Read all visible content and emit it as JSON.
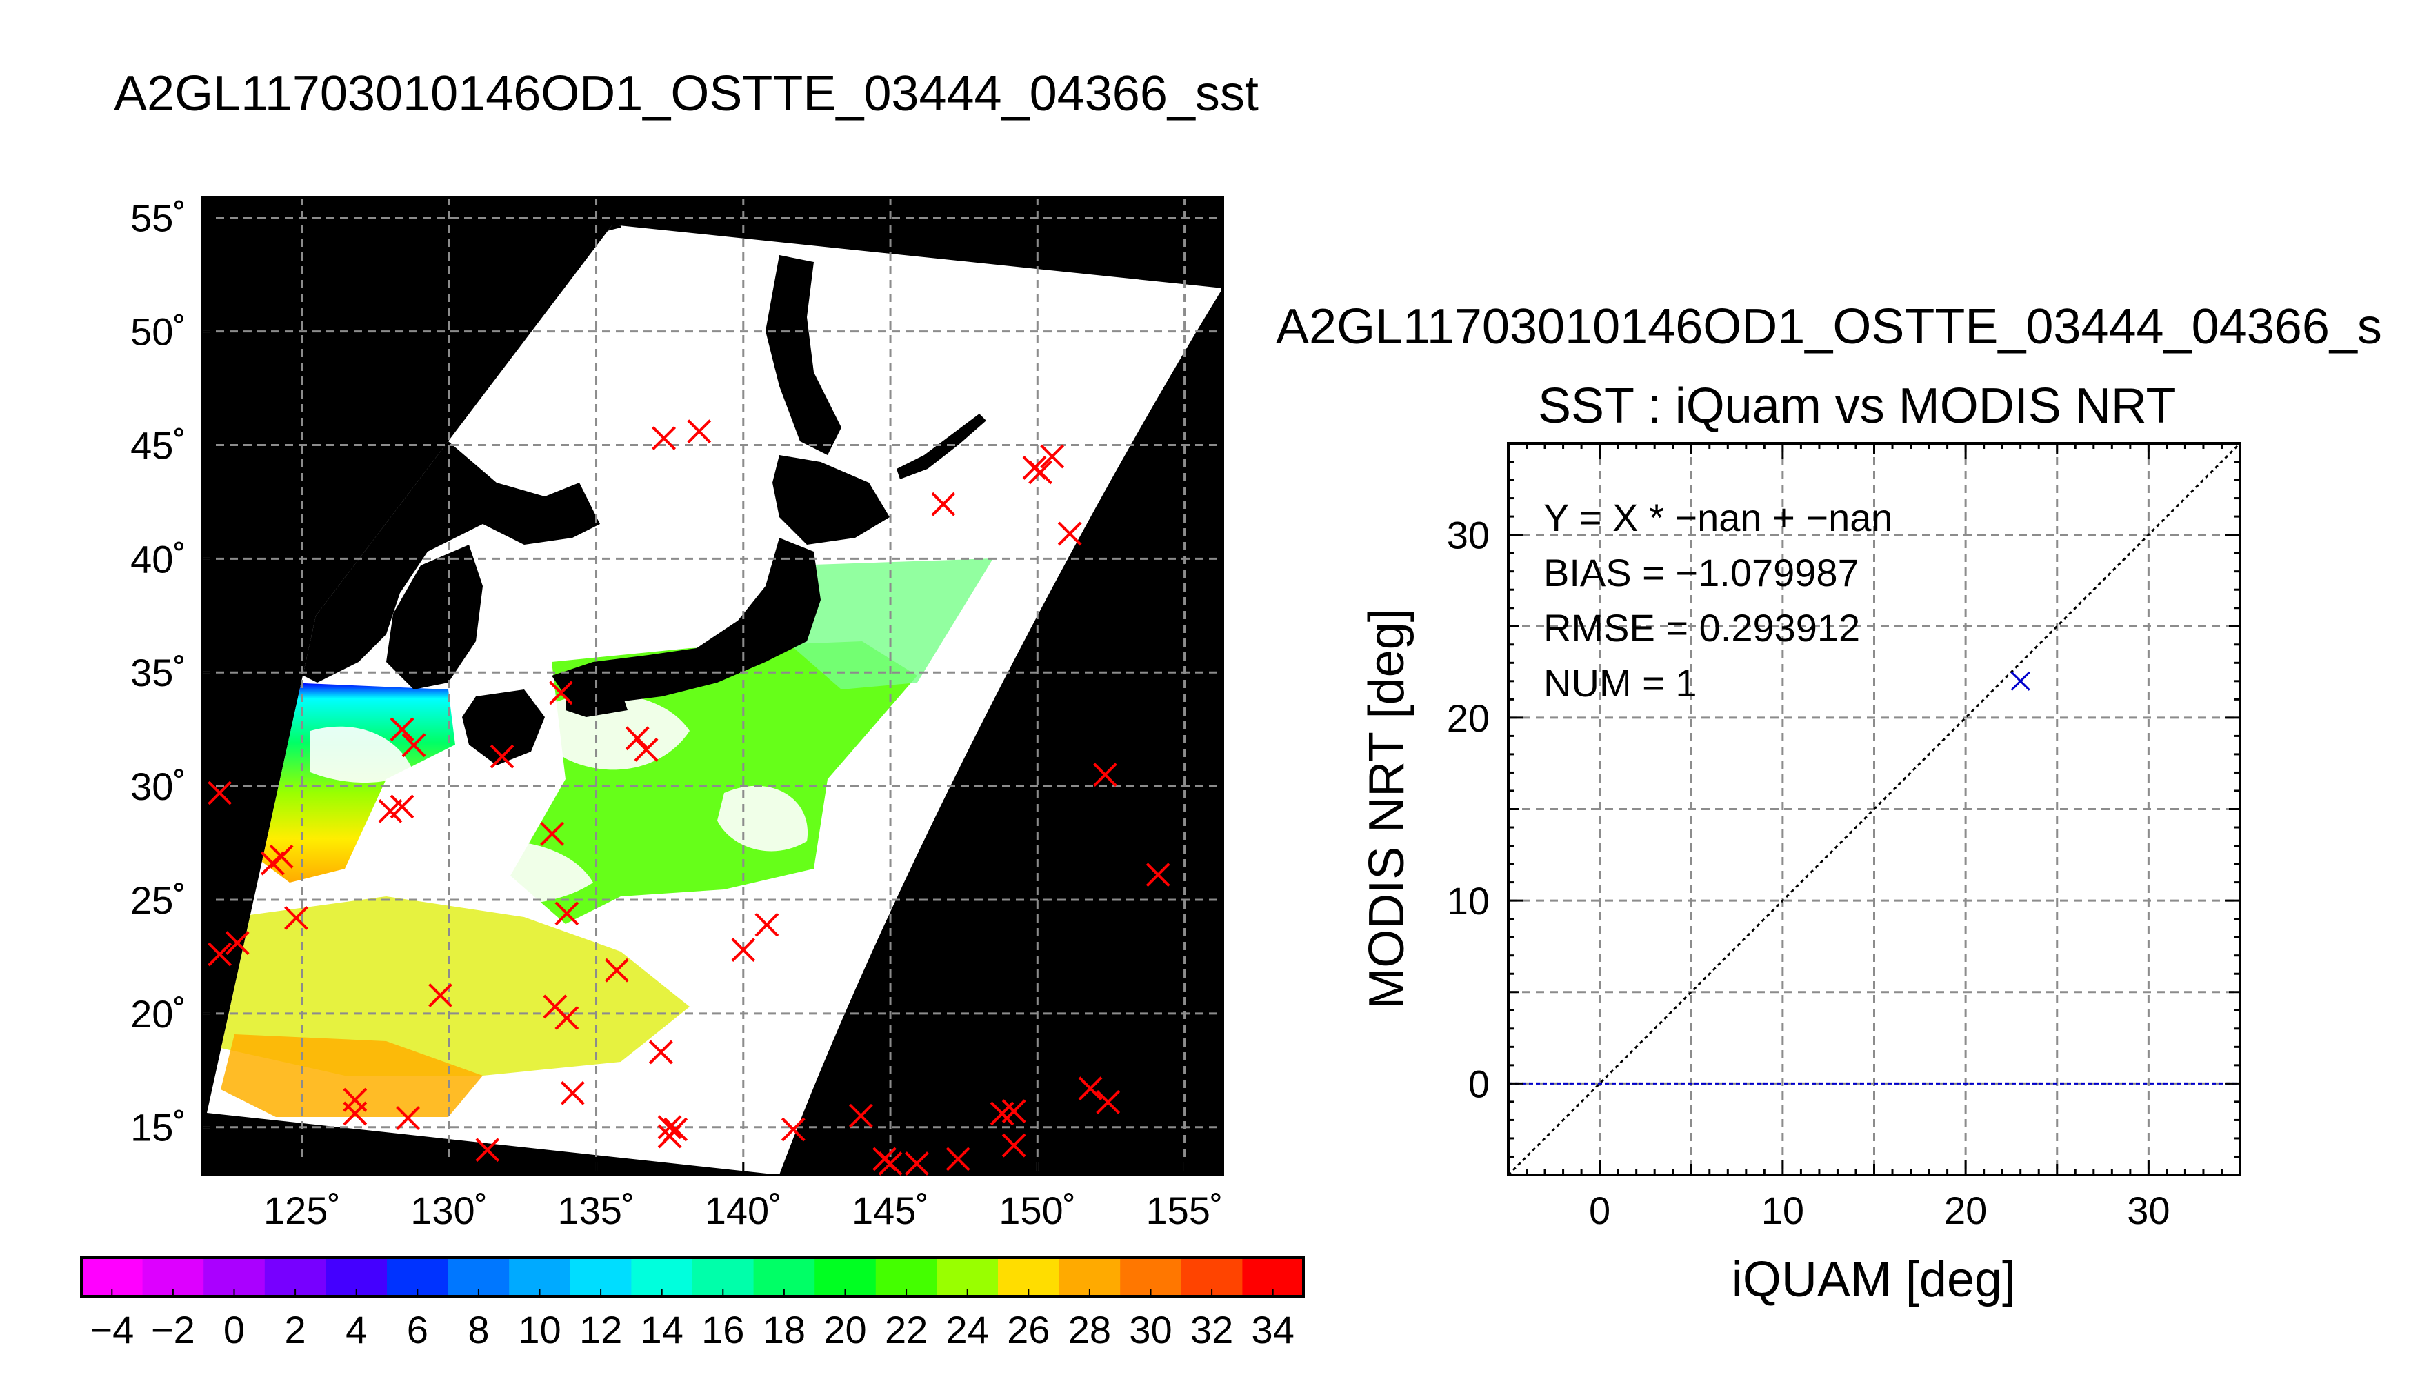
{
  "main_title": "A2GL11703010146OD1_OSTTE_03444_04366_sst",
  "scatter_title": "A2GL11703010146OD1_OSTTE_03444_04366_s",
  "scatter_subtitle": "SST : iQuam vs MODIS NRT",
  "colors": {
    "land": "#000000",
    "cloud": "#ffffff",
    "grid": "#8c8c8c",
    "match_marker": "#ff0000",
    "scatter_marker": "#0000cc",
    "zero_line": "#0000cc",
    "one_to_one_line": "#000000"
  },
  "chart_data": [
    {
      "type": "map",
      "description_tag": "sst-swath-map",
      "lon_ticks": [
        "125˚",
        "130˚",
        "135˚",
        "140˚",
        "145˚",
        "150˚",
        "155˚"
      ],
      "lat_ticks": [
        "55˚",
        "50˚",
        "45˚",
        "40˚",
        "35˚",
        "30˚",
        "25˚",
        "20˚",
        "15˚"
      ],
      "lon_values": [
        125,
        130,
        135,
        140,
        145,
        150,
        155
      ],
      "lat_values": [
        55,
        50,
        45,
        40,
        35,
        30,
        25,
        20,
        15
      ],
      "lon_range": [
        121.6,
        156.3
      ],
      "lat_range": [
        12.9,
        55.9
      ],
      "grid": true,
      "matchup_points": [
        [
          122.2,
          29.7
        ],
        [
          122.2,
          22.6
        ],
        [
          122.8,
          23.1
        ],
        [
          124.0,
          26.6
        ],
        [
          124.3,
          26.9
        ],
        [
          124.8,
          24.2
        ],
        [
          126.8,
          16.2
        ],
        [
          126.8,
          15.6
        ],
        [
          128.0,
          28.9
        ],
        [
          128.4,
          29.1
        ],
        [
          128.4,
          32.5
        ],
        [
          128.8,
          31.8
        ],
        [
          128.6,
          15.4
        ],
        [
          129.7,
          20.8
        ],
        [
          131.3,
          14.0
        ],
        [
          131.8,
          31.3
        ],
        [
          133.5,
          27.9
        ],
        [
          133.6,
          20.3
        ],
        [
          134.0,
          19.8
        ],
        [
          134.0,
          24.4
        ],
        [
          134.2,
          16.5
        ],
        [
          133.8,
          34.1
        ],
        [
          135.7,
          21.9
        ],
        [
          136.4,
          32.1
        ],
        [
          136.7,
          31.6
        ],
        [
          137.2,
          18.3
        ],
        [
          137.3,
          45.3
        ],
        [
          137.5,
          15.0
        ],
        [
          137.5,
          14.6
        ],
        [
          137.7,
          14.9
        ],
        [
          138.5,
          45.6
        ],
        [
          140.0,
          22.8
        ],
        [
          140.8,
          23.9
        ],
        [
          141.7,
          14.9
        ],
        [
          144.0,
          15.5
        ],
        [
          144.8,
          13.6
        ],
        [
          145.0,
          13.4
        ],
        [
          145.9,
          13.4
        ],
        [
          146.8,
          42.4
        ],
        [
          147.3,
          13.6
        ],
        [
          148.8,
          15.6
        ],
        [
          149.2,
          15.7
        ],
        [
          149.2,
          14.2
        ],
        [
          149.9,
          44.0
        ],
        [
          150.1,
          43.8
        ],
        [
          150.5,
          44.5
        ],
        [
          151.1,
          41.1
        ],
        [
          151.8,
          16.7
        ],
        [
          152.3,
          30.5
        ],
        [
          152.4,
          16.1
        ],
        [
          154.1,
          26.1
        ]
      ],
      "colorbar": {
        "ticks": [
          "−4",
          "−2",
          "0",
          "2",
          "4",
          "6",
          "8",
          "10",
          "12",
          "14",
          "16",
          "18",
          "20",
          "22",
          "24",
          "26",
          "28",
          "30",
          "32",
          "34"
        ],
        "range": [
          -5,
          35
        ],
        "bins": 20,
        "colors": [
          "#ff00ff",
          "#dd00ff",
          "#aa00ff",
          "#7700ff",
          "#4400ff",
          "#0000ff",
          "#0033ff",
          "#0077ff",
          "#00aaff",
          "#00ddff",
          "#00ffdd",
          "#00ffaa",
          "#00ff66",
          "#00ff22",
          "#44ff00",
          "#99ff00",
          "#ddff00",
          "#ffdd00",
          "#ffaa00",
          "#ff7700",
          "#ff4400",
          "#ff0000"
        ]
      }
    },
    {
      "type": "scatter",
      "description_tag": "sst-comparison-scatter",
      "xlabel": "iQUAM [deg]",
      "ylabel": "MODIS NRT [deg]",
      "xlim": [
        -5,
        35
      ],
      "ylim": [
        -5,
        35
      ],
      "x_ticks": [
        "0",
        "10",
        "20",
        "30"
      ],
      "y_ticks": [
        "0",
        "10",
        "20",
        "30"
      ],
      "x_tick_values": [
        0,
        10,
        20,
        30
      ],
      "y_tick_values": [
        0,
        10,
        20,
        30
      ],
      "grid": true,
      "points": [
        {
          "x": 23.0,
          "y": 22.0
        }
      ],
      "reference_lines": [
        {
          "kind": "one-to-one",
          "style": "dotted"
        },
        {
          "kind": "y=0",
          "style": "dashed"
        }
      ],
      "stats": {
        "fit": "Y = X * −nan + −nan",
        "bias": "BIAS = −1.079987",
        "rmse": "RMSE = 0.293912",
        "num": "NUM = 1"
      }
    }
  ]
}
